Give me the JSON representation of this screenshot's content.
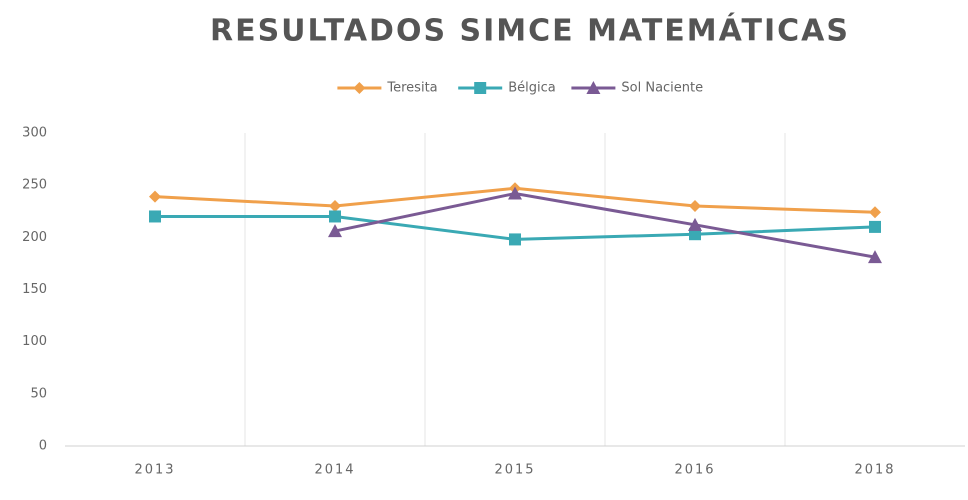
{
  "chart_data": {
    "type": "line",
    "title": "RESULTADOS SIMCE MATEMÁTICAS",
    "categories": [
      "2013",
      "2014",
      "2015",
      "2016",
      "2018"
    ],
    "series": [
      {
        "name": "Teresita",
        "color": "#f0a04b",
        "marker": "diamond",
        "values": [
          239,
          230,
          247,
          230,
          224
        ]
      },
      {
        "name": "Bélgica",
        "color": "#3aa9b4",
        "marker": "square",
        "values": [
          220,
          220,
          198,
          203,
          210
        ]
      },
      {
        "name": "Sol Naciente",
        "color": "#7a5a94",
        "marker": "triangle",
        "values": [
          null,
          206,
          242,
          212,
          181
        ]
      }
    ],
    "ylim": [
      0,
      300
    ],
    "yticks": [
      0,
      50,
      100,
      150,
      200,
      250,
      300
    ],
    "grid": "x",
    "legend": "top"
  }
}
